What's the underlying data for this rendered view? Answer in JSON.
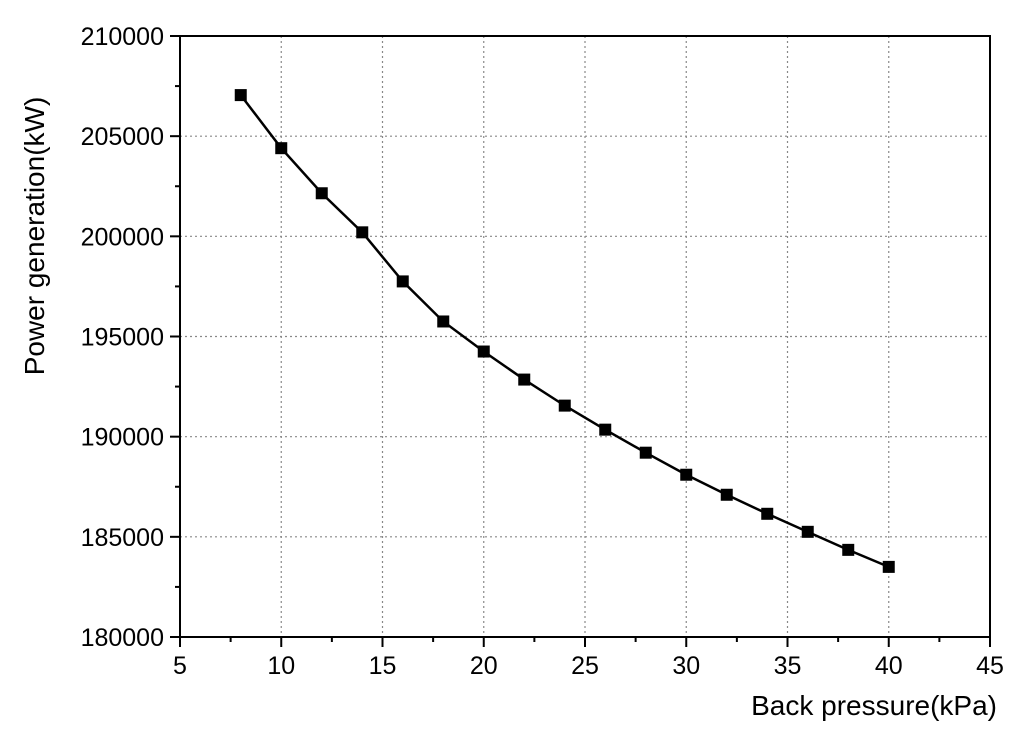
{
  "chart_data": {
    "type": "line",
    "title": "",
    "xlabel": "Back pressure(kPa)",
    "ylabel": "Power generation(kW)",
    "xlim": [
      5,
      45
    ],
    "ylim": [
      180000,
      210000
    ],
    "x_ticks": [
      5,
      10,
      15,
      20,
      25,
      30,
      35,
      40,
      45
    ],
    "y_ticks": [
      180000,
      185000,
      190000,
      195000,
      200000,
      205000,
      210000
    ],
    "x_tick_labels": [
      "5",
      "10",
      "15",
      "20",
      "25",
      "30",
      "35",
      "40",
      "45"
    ],
    "y_tick_labels": [
      "180000",
      "185000",
      "190000",
      "195000",
      "200000",
      "205000",
      "210000"
    ],
    "grid": true,
    "marker": "square",
    "series": [
      {
        "x": [
          8,
          10,
          12,
          14,
          16,
          18,
          20,
          22,
          24,
          26,
          28,
          30,
          32,
          34,
          36,
          38,
          40
        ],
        "y": [
          207050,
          204400,
          202150,
          200200,
          197750,
          195750,
          194250,
          192850,
          191550,
          190350,
          189200,
          188100,
          187100,
          186150,
          185250,
          184350,
          183500
        ],
        "color": "#000000"
      }
    ]
  }
}
